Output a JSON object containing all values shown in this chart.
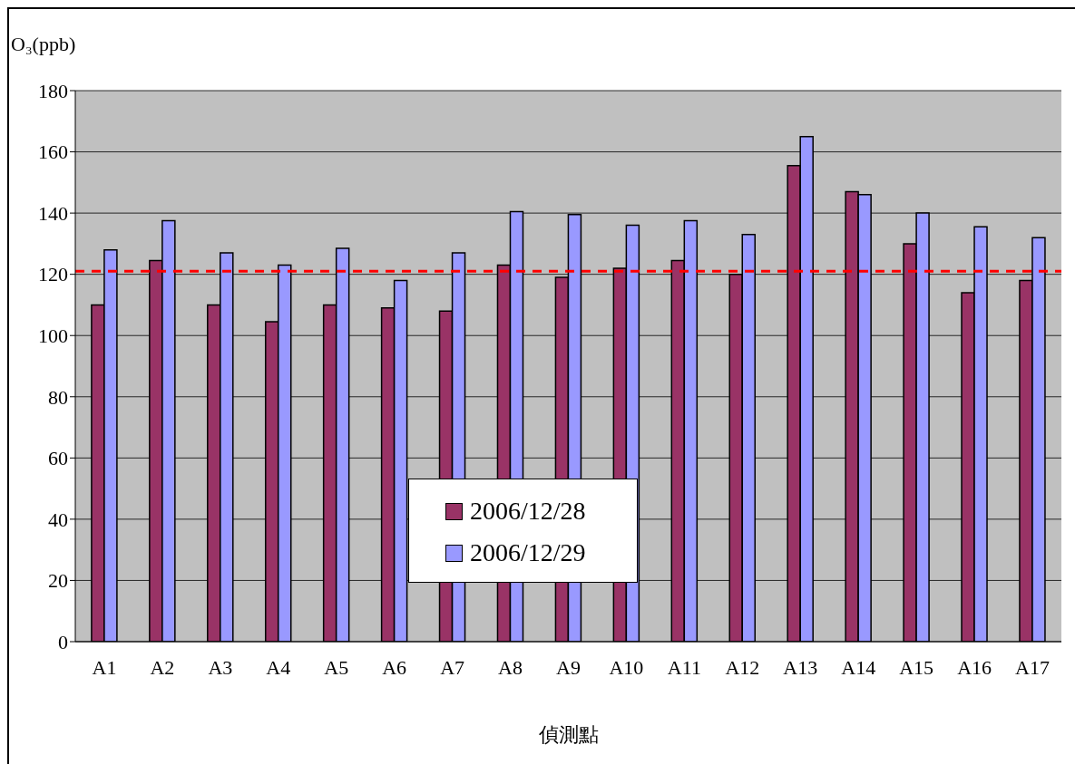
{
  "chart_data": {
    "type": "bar",
    "ylabel": "O₃(ppb)",
    "xlabel": "偵測點",
    "categories": [
      "A1",
      "A2",
      "A3",
      "A4",
      "A5",
      "A6",
      "A7",
      "A8",
      "A9",
      "A10",
      "A11",
      "A12",
      "A13",
      "A14",
      "A15",
      "A16",
      "A17"
    ],
    "series": [
      {
        "name": "2006/12/28",
        "color": "#993366",
        "values": [
          110,
          124.5,
          110,
          104.5,
          110,
          109,
          108,
          123,
          119,
          122,
          124.5,
          120,
          155.5,
          147,
          130,
          114,
          118
        ]
      },
      {
        "name": "2006/12/29",
        "color": "#9999ff",
        "values": [
          128,
          137.5,
          127,
          123,
          128.5,
          118,
          127,
          140.5,
          139.5,
          136,
          137.5,
          133,
          165,
          146,
          140,
          135.5,
          132
        ]
      }
    ],
    "ylim": [
      0,
      180
    ],
    "yticks": [
      0,
      20,
      40,
      60,
      80,
      100,
      120,
      140,
      160,
      180
    ],
    "grid": "y",
    "legend": "bottom",
    "ref_lines": [
      {
        "axis": "y",
        "value": 121,
        "color": "#ff0000",
        "line_style": "dashed"
      }
    ]
  }
}
